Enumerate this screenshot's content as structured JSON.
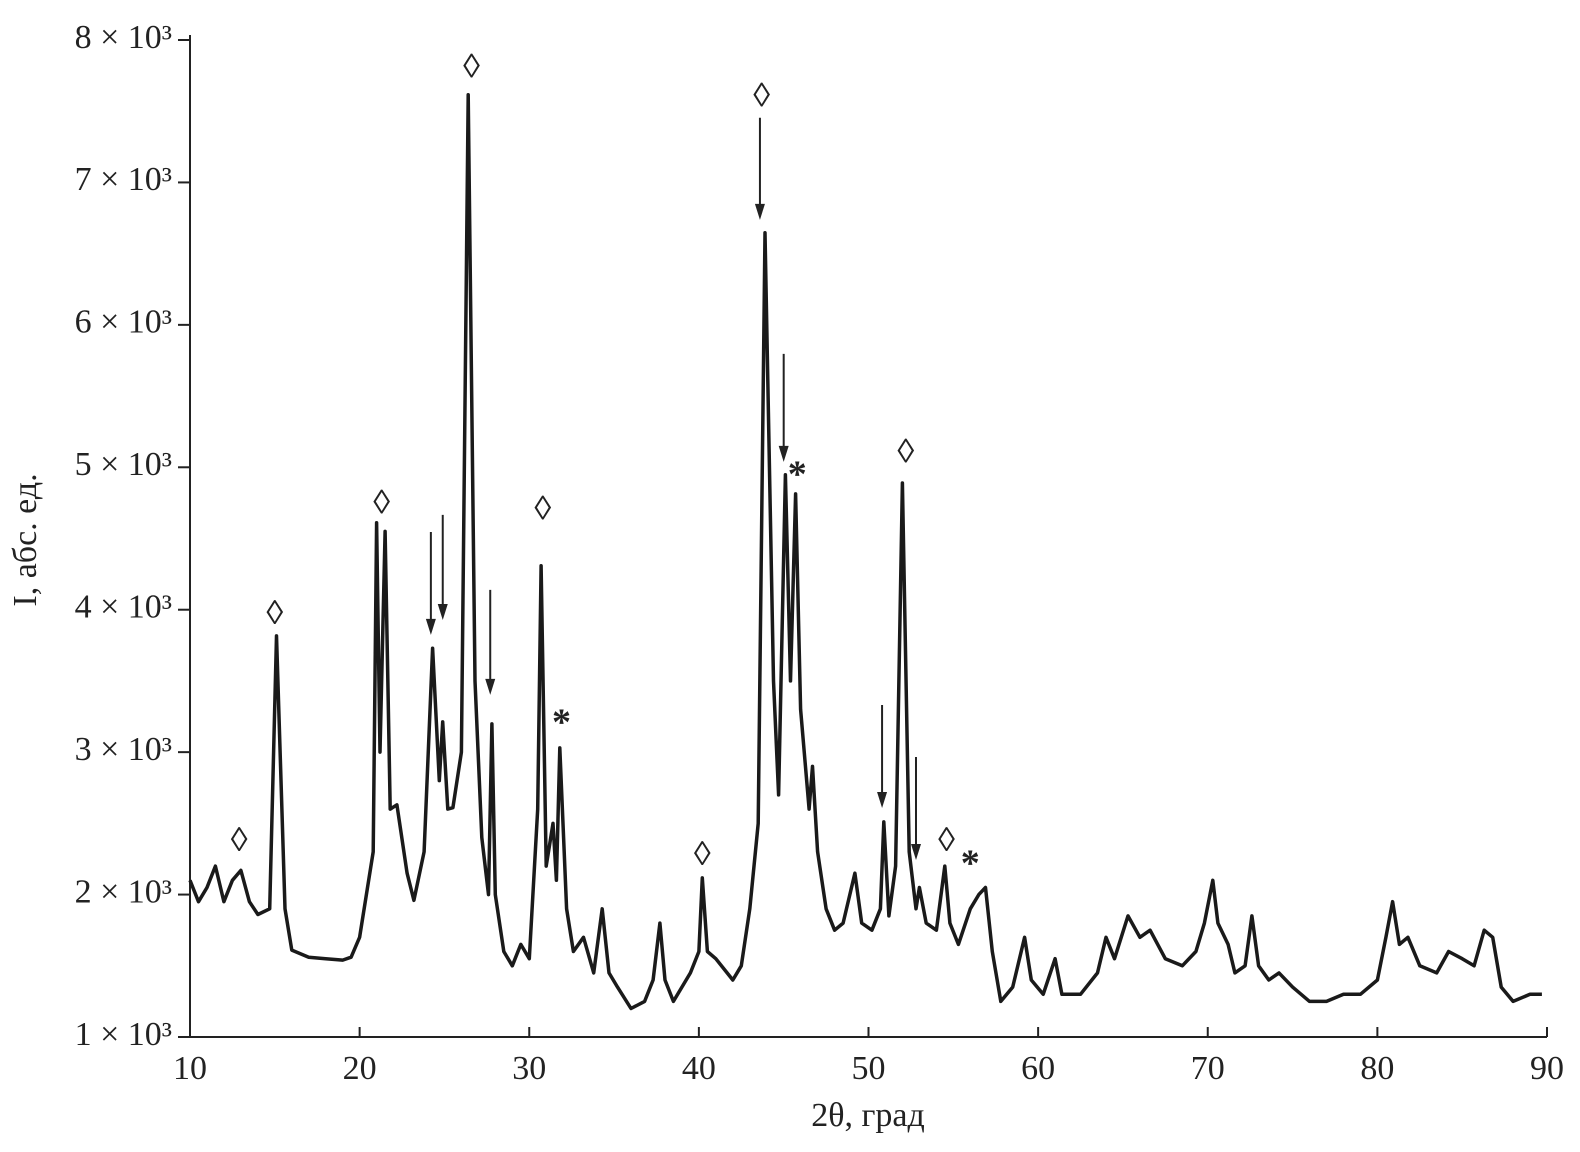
{
  "chart_data": {
    "type": "line",
    "xlabel": "2θ, град",
    "ylabel": "I, абс. ед.",
    "color": "#1a1a1a",
    "xlim": [
      10,
      90
    ],
    "xticks": [
      10,
      20,
      30,
      40,
      50,
      60,
      70,
      80,
      90
    ],
    "ylim": [
      1000,
      8000
    ],
    "yticks": [
      {
        "value": 1000,
        "label": "1 × 10³"
      },
      {
        "value": 2000,
        "label": "2 × 10³"
      },
      {
        "value": 3000,
        "label": "3 × 10³"
      },
      {
        "value": 4000,
        "label": "4 × 10³"
      },
      {
        "value": 5000,
        "label": "5 × 10³"
      },
      {
        "value": 6000,
        "label": "6 × 10³"
      },
      {
        "value": 7000,
        "label": "7 × 10³"
      },
      {
        "value": 8000,
        "label": "8 × 10³"
      }
    ],
    "x": [
      10,
      10.5,
      11,
      11.5,
      12,
      12.5,
      13,
      13.5,
      14,
      14.7,
      15.1,
      15.6,
      16,
      17,
      18,
      19,
      19.5,
      20,
      20.8,
      21.0,
      21.2,
      21.5,
      21.8,
      22.2,
      22.8,
      23.2,
      23.8,
      24.3,
      24.7,
      24.9,
      25.2,
      25.5,
      26.0,
      26.4,
      26.8,
      27.2,
      27.6,
      27.8,
      28.0,
      28.5,
      29.0,
      29.5,
      30.0,
      30.5,
      30.7,
      31.0,
      31.4,
      31.6,
      31.8,
      32.2,
      32.6,
      33.2,
      33.8,
      34.3,
      34.7,
      35.2,
      36,
      36.8,
      37.3,
      37.7,
      38.0,
      38.5,
      39.5,
      40.0,
      40.2,
      40.5,
      41,
      42,
      42.5,
      43.0,
      43.5,
      43.9,
      44.4,
      44.7,
      45.1,
      45.4,
      45.7,
      46.0,
      46.5,
      46.7,
      47.0,
      47.5,
      48.0,
      48.5,
      49.2,
      49.6,
      50.2,
      50.7,
      50.9,
      51.2,
      51.6,
      52.0,
      52.4,
      52.8,
      53.0,
      53.4,
      54.0,
      54.5,
      54.8,
      55.3,
      56.0,
      56.5,
      56.9,
      57.3,
      57.8,
      58.5,
      59.2,
      59.6,
      60.3,
      61.0,
      61.4,
      62.5,
      63.5,
      64,
      64.5,
      65.3,
      66,
      66.6,
      67.5,
      68.5,
      69.3,
      69.8,
      70.3,
      70.6,
      71.2,
      71.6,
      72.2,
      72.6,
      73.0,
      73.6,
      74.2,
      75,
      76,
      77,
      78,
      79,
      80.0,
      80.5,
      80.9,
      81.3,
      81.8,
      82.5,
      83.5,
      84.2,
      85,
      85.7,
      86.3,
      86.8,
      87.3,
      88,
      89,
      89.7
    ],
    "values": [
      2100,
      1950,
      2050,
      2200,
      1950,
      2100,
      2170,
      1950,
      1860,
      1900,
      3816,
      1900,
      1610,
      1560,
      1550,
      1540,
      1560,
      1700,
      2300,
      4610,
      3000,
      4550,
      2600,
      2630,
      2150,
      1960,
      2300,
      3730,
      2800,
      3212,
      2600,
      2610,
      3000,
      7615,
      3500,
      2400,
      2000,
      3198,
      2000,
      1600,
      1500,
      1650,
      1550,
      2600,
      4308,
      2200,
      2500,
      2100,
      3030,
      1900,
      1600,
      1700,
      1450,
      1900,
      1450,
      1350,
      1200,
      1250,
      1400,
      1800,
      1400,
      1250,
      1450,
      1600,
      2117,
      1600,
      1550,
      1400,
      1500,
      1900,
      2500,
      6646,
      3500,
      2700,
      4947,
      3500,
      4813,
      3300,
      2600,
      2900,
      2300,
      1900,
      1750,
      1800,
      2150,
      1800,
      1750,
      1900,
      2510,
      1850,
      2200,
      4890,
      2300,
      1900,
      2050,
      1800,
      1750,
      2200,
      1800,
      1650,
      1900,
      2000,
      2050,
      1600,
      1250,
      1350,
      1700,
      1400,
      1300,
      1550,
      1300,
      1300,
      1450,
      1700,
      1550,
      1850,
      1700,
      1750,
      1550,
      1500,
      1600,
      1800,
      2100,
      1800,
      1650,
      1450,
      1500,
      1850,
      1500,
      1400,
      1450,
      1350,
      1250,
      1250,
      1300,
      1300,
      1400,
      1700,
      1950,
      1650,
      1700,
      1500,
      1450,
      1600,
      1550,
      1500,
      1750,
      1700,
      1350,
      1250,
      1300,
      1300
    ],
    "annotations": [
      {
        "text": "◊",
        "x": 12.9,
        "y": 2360
      },
      {
        "text": "◊",
        "x": 15.0,
        "y": 3956
      },
      {
        "text": "◊",
        "x": 21.3,
        "y": 4729
      },
      {
        "text": "◊",
        "x": 26.6,
        "y": 7790
      },
      {
        "text": "◊",
        "x": 30.8,
        "y": 4687
      },
      {
        "text": "◊",
        "x": 40.2,
        "y": 2264
      },
      {
        "text": "◊",
        "x": 43.7,
        "y": 7587
      },
      {
        "text": "◊",
        "x": 52.2,
        "y": 5087
      },
      {
        "text": "◊",
        "x": 54.6,
        "y": 2360
      },
      {
        "text": "*",
        "x": 31.9,
        "y": 3240
      },
      {
        "text": "*",
        "x": 45.8,
        "y": 4982
      },
      {
        "text": "*",
        "x": 56.0,
        "y": 2250
      }
    ],
    "arrows": [
      {
        "x": 24.2,
        "y_from": 4546,
        "y_to": 3823
      },
      {
        "x": 24.9,
        "y_from": 4666,
        "y_to": 3928
      },
      {
        "x": 27.7,
        "y_from": 4139,
        "y_to": 3402
      },
      {
        "x": 43.6,
        "y_from": 7454,
        "y_to": 6737
      },
      {
        "x": 45.0,
        "y_from": 5796,
        "y_to": 5038
      },
      {
        "x": 50.8,
        "y_from": 3331,
        "y_to": 2608
      },
      {
        "x": 52.8,
        "y_from": 2966,
        "y_to": 2243
      }
    ]
  }
}
